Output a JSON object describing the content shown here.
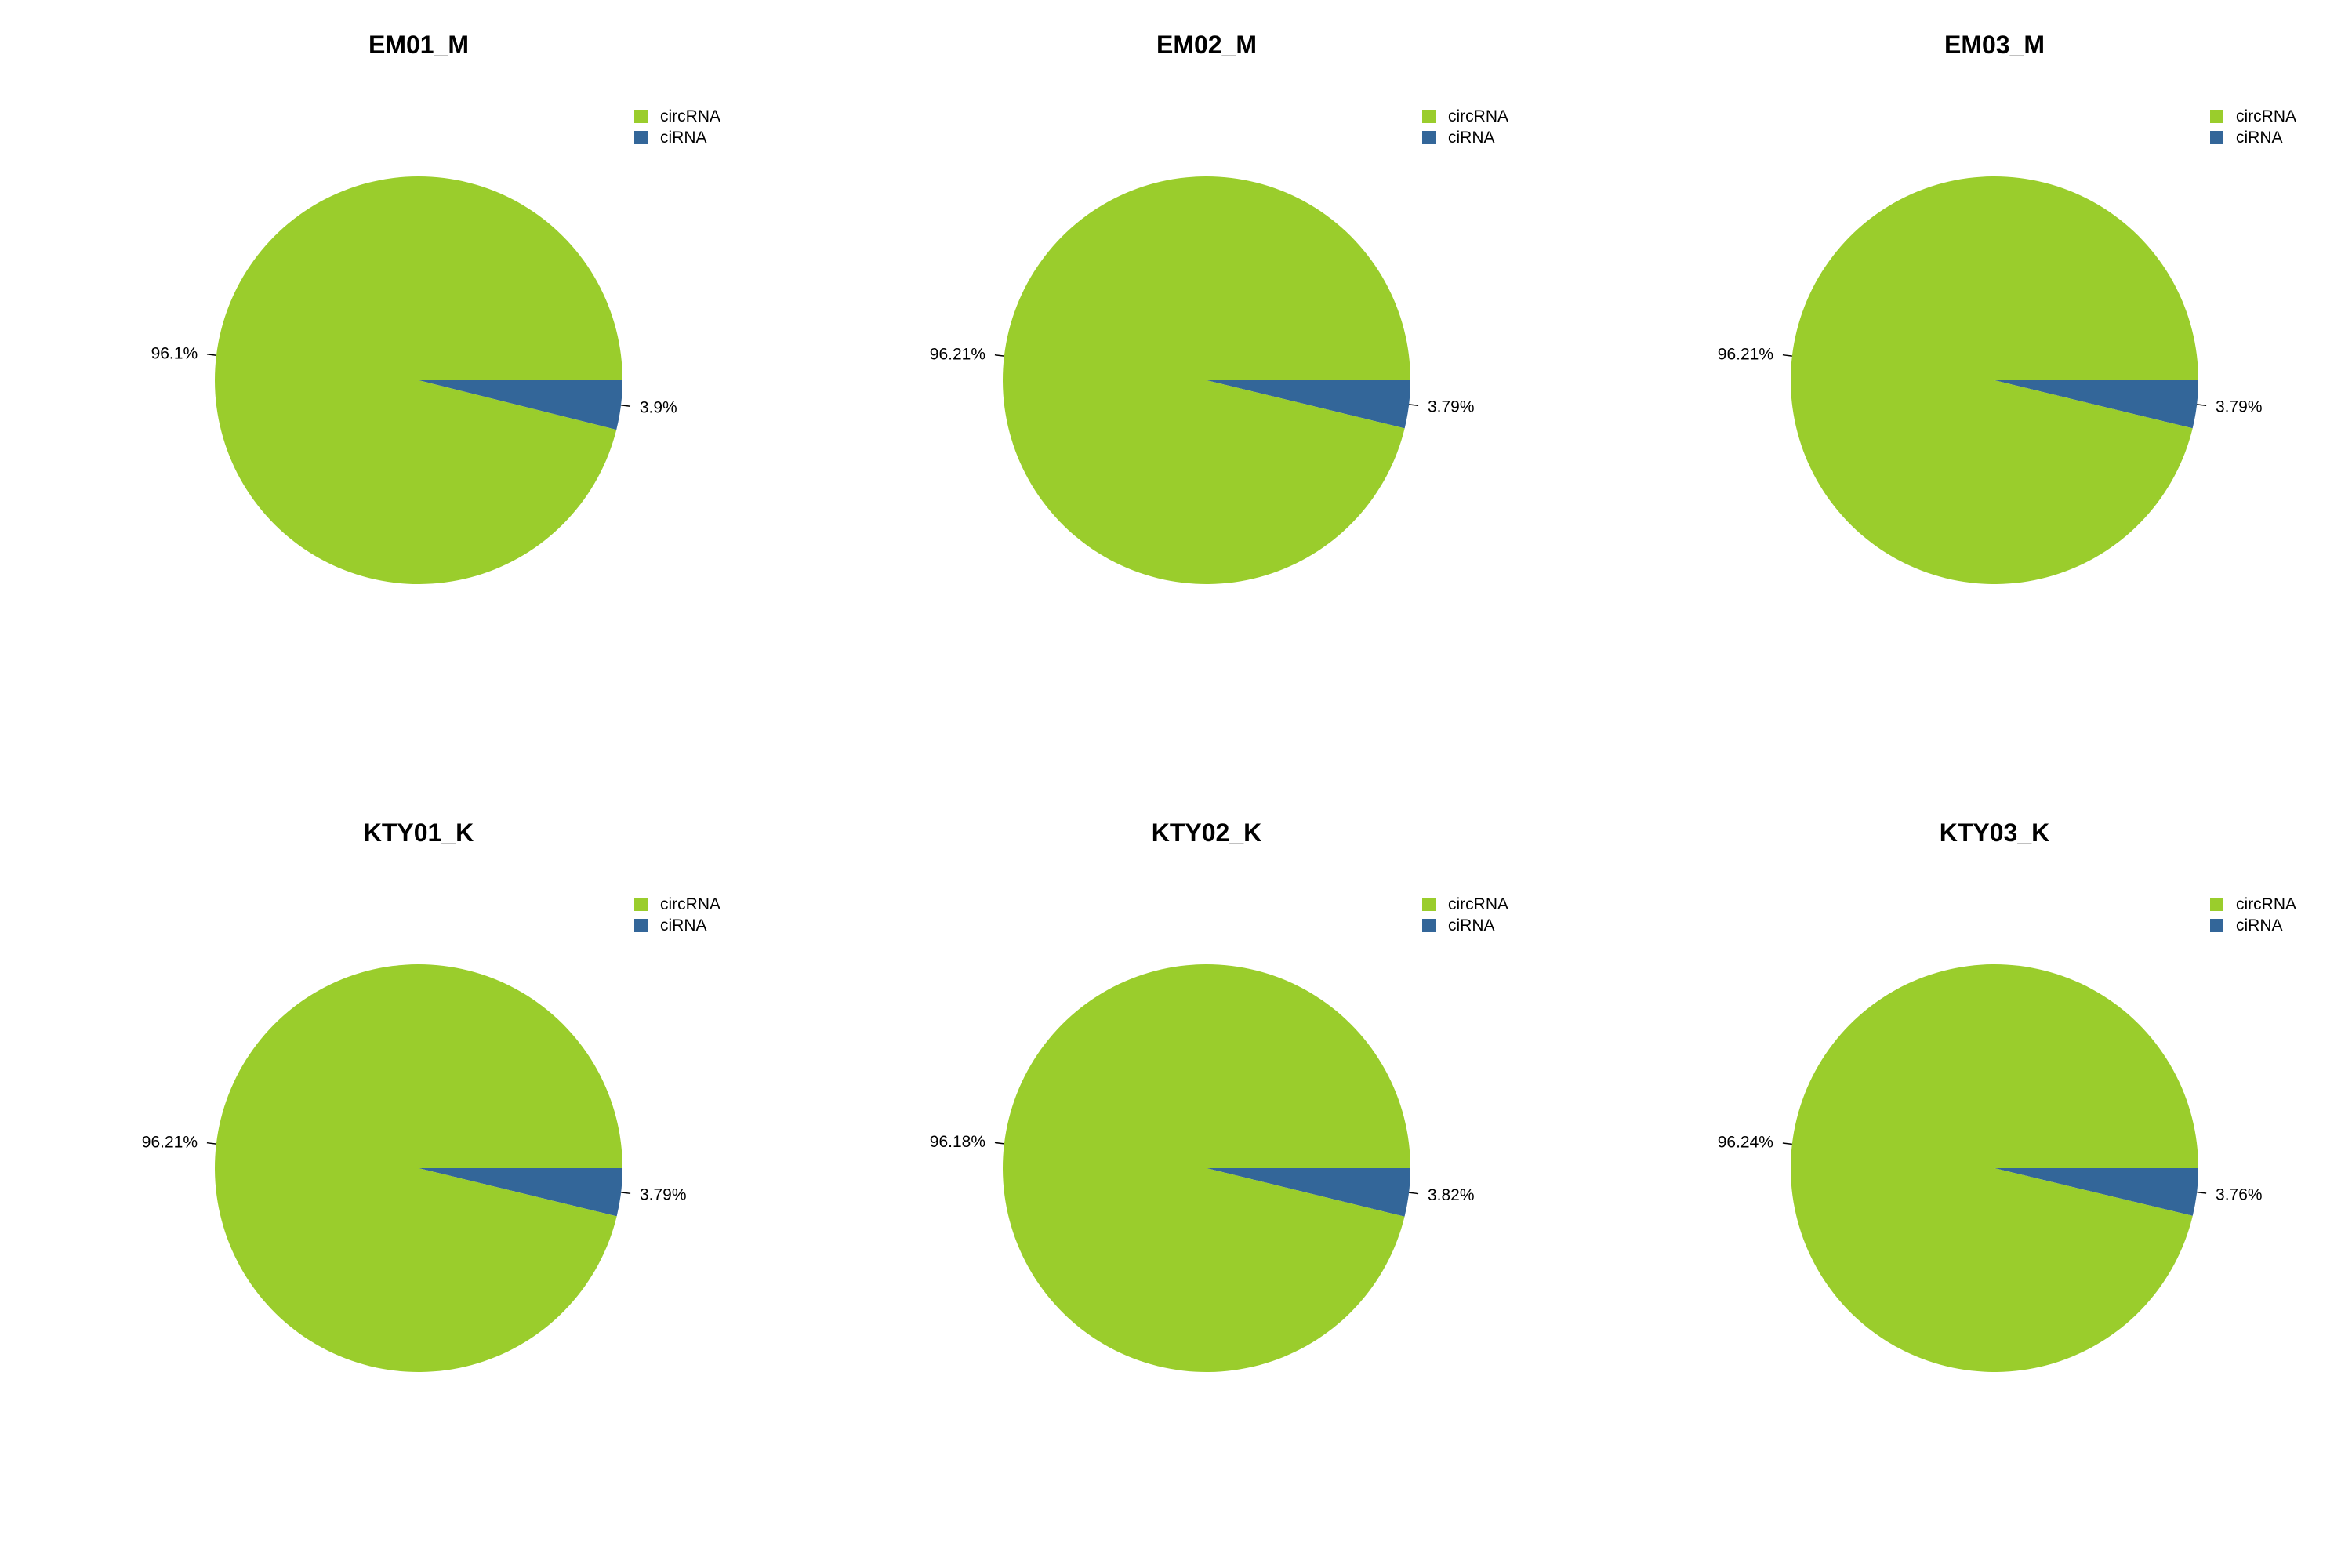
{
  "colors": {
    "circRNA": "#9acd2c",
    "ciRNA": "#336699"
  },
  "legend_labels": [
    "circRNA",
    "ciRNA"
  ],
  "chart_data": [
    {
      "type": "pie",
      "title": "EM01_M",
      "slices": [
        {
          "name": "circRNA",
          "value": 96.1,
          "label": "96.1%"
        },
        {
          "name": "ciRNA",
          "value": 3.9,
          "label": "3.9%"
        }
      ],
      "legend": "top-right"
    },
    {
      "type": "pie",
      "title": "EM02_M",
      "slices": [
        {
          "name": "circRNA",
          "value": 96.21,
          "label": "96.21%"
        },
        {
          "name": "ciRNA",
          "value": 3.79,
          "label": "3.79%"
        }
      ],
      "legend": "top-right"
    },
    {
      "type": "pie",
      "title": "EM03_M",
      "slices": [
        {
          "name": "circRNA",
          "value": 96.21,
          "label": "96.21%"
        },
        {
          "name": "ciRNA",
          "value": 3.79,
          "label": "3.79%"
        }
      ],
      "legend": "top-right"
    },
    {
      "type": "pie",
      "title": "KTY01_K",
      "slices": [
        {
          "name": "circRNA",
          "value": 96.21,
          "label": "96.21%"
        },
        {
          "name": "ciRNA",
          "value": 3.79,
          "label": "3.79%"
        }
      ],
      "legend": "top-right"
    },
    {
      "type": "pie",
      "title": "KTY02_K",
      "slices": [
        {
          "name": "circRNA",
          "value": 96.18,
          "label": "96.18%"
        },
        {
          "name": "ciRNA",
          "value": 3.82,
          "label": "3.82%"
        }
      ],
      "legend": "top-right"
    },
    {
      "type": "pie",
      "title": "KTY03_K",
      "slices": [
        {
          "name": "circRNA",
          "value": 96.24,
          "label": "96.24%"
        },
        {
          "name": "ciRNA",
          "value": 3.76,
          "label": "3.76%"
        }
      ],
      "legend": "top-right"
    }
  ]
}
